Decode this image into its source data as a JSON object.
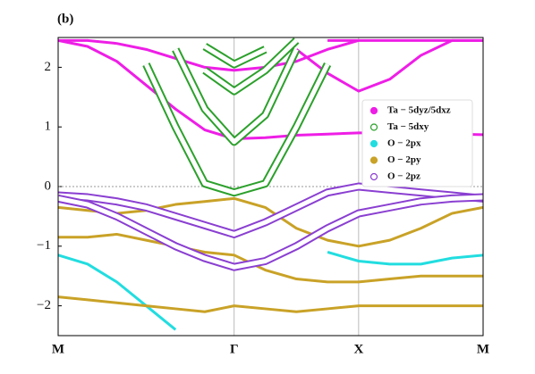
{
  "chart_data": {
    "type": "line",
    "panel_label": "(b)",
    "x": [
      0,
      0.236,
      0.471,
      0.707,
      0.943,
      1.178,
      1.414,
      1.664,
      1.914,
      2.164,
      2.414,
      2.664,
      2.914,
      3.164,
      3.414
    ],
    "xlim": [
      0,
      3.414
    ],
    "xticks": [
      {
        "value": 0,
        "label": "M"
      },
      {
        "value": 1.414,
        "label": "Γ"
      },
      {
        "value": 2.414,
        "label": "X"
      },
      {
        "value": 3.414,
        "label": "M"
      }
    ],
    "ylim": [
      -2.5,
      2.5
    ],
    "yticks": [
      {
        "value": -2,
        "label": "−2"
      },
      {
        "value": -1,
        "label": "−1"
      },
      0,
      1,
      2
    ],
    "reference_line": 0,
    "legend": "right",
    "series": [
      {
        "name": "Ta − 5dyz/5dxz",
        "color": "#ee1ee6",
        "marker": "filled",
        "bands": [
          [
            2.45,
            2.35,
            2.1,
            1.7,
            1.3,
            0.95,
            0.8,
            0.82,
            0.86,
            0.88,
            0.9,
            0.9,
            0.9,
            0.88,
            0.87
          ],
          [
            2.45,
            2.45,
            2.4,
            2.3,
            2.15,
            2.0,
            1.95,
            2.0,
            2.1,
            2.3,
            2.45,
            null,
            null,
            null,
            null
          ],
          [
            null,
            null,
            null,
            null,
            null,
            null,
            null,
            null,
            2.3,
            1.9,
            1.6,
            1.8,
            2.2,
            2.45,
            2.45
          ],
          [
            null,
            null,
            null,
            null,
            null,
            null,
            null,
            null,
            null,
            2.45,
            2.45,
            2.45,
            2.45,
            2.45,
            2.45
          ]
        ]
      },
      {
        "name": "Ta − 5dxy",
        "color": "#2ca02c",
        "marker": "hollow",
        "bands": [
          [
            null,
            null,
            null,
            2.05,
            1.0,
            0.05,
            -0.1,
            0.05,
            1.0,
            2.05,
            null,
            null,
            null,
            null,
            null
          ],
          [
            null,
            null,
            null,
            null,
            2.3,
            1.3,
            0.75,
            1.2,
            2.3,
            null,
            null,
            null,
            null,
            null,
            null
          ],
          [
            null,
            null,
            null,
            null,
            null,
            1.95,
            1.6,
            1.95,
            2.45,
            null,
            null,
            null,
            null,
            null,
            null
          ],
          [
            null,
            null,
            null,
            null,
            null,
            2.35,
            2.05,
            2.3,
            null,
            null,
            null,
            null,
            null,
            null,
            null
          ]
        ]
      },
      {
        "name": "O − 2px",
        "color": "#22dde0",
        "marker": "filled",
        "bands": [
          [
            -1.15,
            -1.3,
            -1.6,
            -2.0,
            -2.4,
            null,
            null,
            null,
            null,
            null,
            null,
            null,
            null,
            null,
            null
          ],
          [
            null,
            null,
            null,
            null,
            null,
            null,
            null,
            null,
            null,
            -1.1,
            -1.25,
            -1.3,
            -1.3,
            -1.2,
            -1.15
          ]
        ]
      },
      {
        "name": "O − 2py",
        "color": "#c9a227",
        "marker": "filled",
        "bands": [
          [
            -0.35,
            -0.4,
            -0.45,
            -0.4,
            -0.3,
            -0.25,
            -0.2,
            -0.35,
            -0.7,
            -0.9,
            -1.0,
            -0.9,
            -0.7,
            -0.45,
            -0.35
          ],
          [
            -0.85,
            -0.85,
            -0.8,
            -0.9,
            -1.0,
            -1.1,
            -1.15,
            -1.4,
            -1.55,
            -1.6,
            -1.6,
            -1.55,
            -1.5,
            -1.5,
            -1.5
          ],
          [
            -1.85,
            -1.9,
            -1.95,
            -2.0,
            -2.05,
            -2.1,
            -2.0,
            -2.05,
            -2.1,
            -2.05,
            -2.0,
            -2.0,
            -2.0,
            -2.0,
            -2.0
          ]
        ]
      },
      {
        "name": "O − 2pz",
        "color": "#8a3fd1",
        "marker": "hollow",
        "bands": [
          [
            -0.15,
            -0.18,
            -0.25,
            -0.35,
            -0.5,
            -0.65,
            -0.8,
            -0.6,
            -0.35,
            -0.1,
            0.0,
            -0.05,
            -0.1,
            -0.15,
            -0.2
          ],
          [
            -0.2,
            -0.3,
            -0.5,
            -0.75,
            -1.0,
            -1.2,
            -1.35,
            -1.25,
            -1.0,
            -0.7,
            -0.45,
            -0.35,
            -0.25,
            -0.2,
            -0.18
          ]
        ]
      }
    ]
  }
}
